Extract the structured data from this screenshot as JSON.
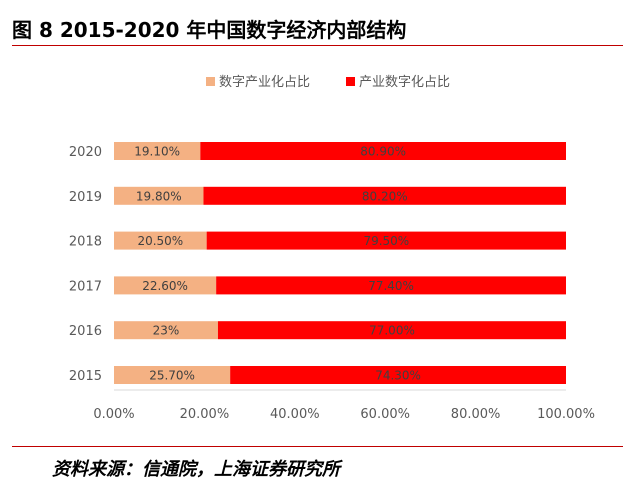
{
  "figure": {
    "title": "图 8 2015-2020 年中国数字经济内部结构",
    "source": "资料来源：信通院，上海证券研究所"
  },
  "chart_data": {
    "type": "bar",
    "orientation": "horizontal",
    "stacked": true,
    "categories": [
      "2020",
      "2019",
      "2018",
      "2017",
      "2016",
      "2015"
    ],
    "series": [
      {
        "name": "数字产业化占比",
        "color": "#f4b183",
        "values": [
          19.1,
          19.8,
          20.5,
          22.6,
          23,
          25.7
        ],
        "labels": [
          "19.10%",
          "19.80%",
          "20.50%",
          "22.60%",
          "23%",
          "25.70%"
        ]
      },
      {
        "name": "产业数字化占比",
        "color": "#ff0000",
        "values": [
          80.9,
          80.2,
          79.5,
          77.4,
          77.0,
          74.3
        ],
        "labels": [
          "80.90%",
          "80.20%",
          "79.50%",
          "77.40%",
          "77.00%",
          "74.30%"
        ]
      }
    ],
    "xticks": [
      "0.00%",
      "20.00%",
      "40.00%",
      "60.00%",
      "80.00%",
      "100.00%"
    ],
    "xlim": [
      0,
      100
    ],
    "legend_position": "top",
    "grid": false
  }
}
